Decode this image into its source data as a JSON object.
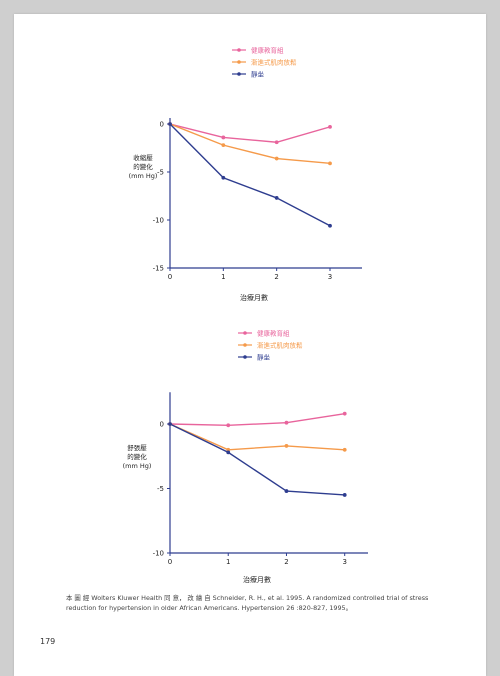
{
  "chart_data": [
    {
      "type": "line",
      "ylabel": "收縮壓的變化\n(mm Hg)",
      "xlabel": "治療月數",
      "x": [
        0,
        1,
        2,
        3
      ],
      "xlim": [
        0,
        3.6
      ],
      "ylim": [
        -15,
        0
      ],
      "yticks": [
        0,
        -5,
        -10,
        -15
      ],
      "xticks": [
        0,
        1,
        2,
        3
      ],
      "legend_position": "top-center",
      "series": [
        {
          "name": "健康教育組",
          "color": "#e8649c",
          "values": [
            0,
            -1.4,
            -1.9,
            -0.3
          ]
        },
        {
          "name": "漸進式肌肉放鬆",
          "color": "#f59a4a",
          "values": [
            0,
            -2.2,
            -3.6,
            -4.1
          ]
        },
        {
          "name": "靜坐",
          "color": "#2e3d8f",
          "values": [
            0,
            -5.6,
            -7.7,
            -10.6
          ]
        }
      ]
    },
    {
      "type": "line",
      "ylabel": "舒張壓的變化\n(mm Hg)",
      "xlabel": "治療月數",
      "x": [
        0,
        1,
        2,
        3
      ],
      "xlim": [
        0,
        3.4
      ],
      "ylim": [
        -10,
        2
      ],
      "yticks": [
        0,
        -5,
        -10
      ],
      "xticks": [
        0,
        1,
        2,
        3
      ],
      "legend_position": "top-center",
      "series": [
        {
          "name": "健康教育組",
          "color": "#e8649c",
          "values": [
            0,
            -0.1,
            0.1,
            0.8
          ]
        },
        {
          "name": "漸進式肌肉放鬆",
          "color": "#f59a4a",
          "values": [
            0,
            -2.0,
            -1.7,
            -2.0
          ]
        },
        {
          "name": "靜坐",
          "color": "#2e3d8f",
          "values": [
            0,
            -2.2,
            -5.2,
            -5.5
          ]
        }
      ]
    }
  ],
  "caption": "本 圖 經 Wolters Kluwer Health 同 意， 改 繪 自 Schneider, R. H., et al. 1995. A randomized controlled trial of stress reduction for hypertension in older African Americans. Hypertension 26 :820-827, 1995。",
  "page_number": "179"
}
